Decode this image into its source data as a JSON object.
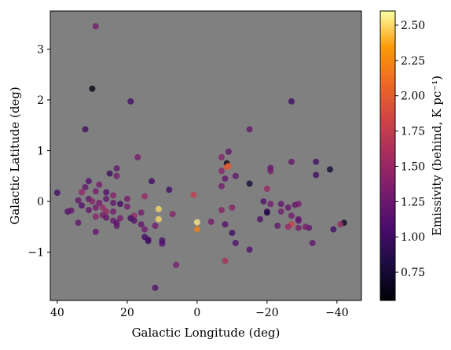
{
  "chart_data": {
    "type": "scatter",
    "xlabel": "Galactic Longitude (deg)",
    "ylabel": "Galactic Latitude (deg)",
    "x_reversed": true,
    "xlim": [
      42,
      -47
    ],
    "ylim": [
      -1.95,
      3.75
    ],
    "x_ticks": [
      40,
      20,
      0,
      -20,
      -40
    ],
    "x_tick_labels": [
      "40",
      "20",
      "0",
      "−20",
      "−40"
    ],
    "y_ticks": [
      3,
      2,
      1,
      0,
      -1
    ],
    "y_tick_labels": [
      "3",
      "2",
      "1",
      "0",
      "−1"
    ],
    "background_color": "#808080",
    "grid": false,
    "colorbar": {
      "label": "Emissivity (behind, K pc⁻¹)",
      "range": [
        0.55,
        2.6
      ],
      "ticks": [
        0.75,
        1.0,
        1.25,
        1.5,
        1.75,
        2.0,
        2.25,
        2.5
      ],
      "tick_labels": [
        "0.75",
        "1.00",
        "1.25",
        "1.50",
        "1.75",
        "2.00",
        "2.25",
        "2.50"
      ],
      "colormap": "inferno"
    },
    "points": [
      {
        "x": 29,
        "y": 3.45,
        "c": 1.3
      },
      {
        "x": 30,
        "y": 2.22,
        "c": 0.6
      },
      {
        "x": 19,
        "y": 1.97,
        "c": 1.0
      },
      {
        "x": -27,
        "y": 1.97,
        "c": 1.0
      },
      {
        "x": 32,
        "y": 1.42,
        "c": 1.0
      },
      {
        "x": -15,
        "y": 1.42,
        "c": 1.2
      },
      {
        "x": -9,
        "y": 0.98,
        "c": 1.2
      },
      {
        "x": 17,
        "y": 0.87,
        "c": 1.3
      },
      {
        "x": -7,
        "y": 0.87,
        "c": 1.4
      },
      {
        "x": -8.5,
        "y": 0.75,
        "c": 0.6
      },
      {
        "x": -8.5,
        "y": 0.68,
        "c": 1.95
      },
      {
        "x": -9,
        "y": 0.7,
        "c": 2.0
      },
      {
        "x": -27,
        "y": 0.78,
        "c": 1.2
      },
      {
        "x": -34,
        "y": 0.78,
        "c": 1.0
      },
      {
        "x": -38,
        "y": 0.63,
        "c": 0.75
      },
      {
        "x": -21,
        "y": 0.66,
        "c": 1.2
      },
      {
        "x": -21,
        "y": 0.6,
        "c": 1.3
      },
      {
        "x": -7,
        "y": 0.6,
        "c": 1.4
      },
      {
        "x": 23,
        "y": 0.65,
        "c": 1.2
      },
      {
        "x": 25,
        "y": 0.55,
        "c": 1.0
      },
      {
        "x": -11,
        "y": 0.5,
        "c": 1.2
      },
      {
        "x": -34,
        "y": 0.52,
        "c": 1.0
      },
      {
        "x": 23,
        "y": 0.5,
        "c": 1.3
      },
      {
        "x": -8,
        "y": 0.45,
        "c": 1.2
      },
      {
        "x": 31,
        "y": 0.4,
        "c": 1.1
      },
      {
        "x": 13,
        "y": 0.4,
        "c": 1.0
      },
      {
        "x": 28,
        "y": 0.33,
        "c": 1.3
      },
      {
        "x": -15,
        "y": 0.35,
        "c": 0.75
      },
      {
        "x": 32,
        "y": 0.28,
        "c": 1.2
      },
      {
        "x": -7,
        "y": 0.3,
        "c": 1.3
      },
      {
        "x": 8,
        "y": 0.23,
        "c": 1.0
      },
      {
        "x": -20,
        "y": 0.25,
        "c": 1.5
      },
      {
        "x": 29,
        "y": 0.2,
        "c": 1.3
      },
      {
        "x": 26,
        "y": 0.18,
        "c": 1.1
      },
      {
        "x": 33,
        "y": 0.18,
        "c": 1.45
      },
      {
        "x": 40,
        "y": 0.17,
        "c": 1.0
      },
      {
        "x": 1,
        "y": 0.13,
        "c": 1.75
      },
      {
        "x": 24,
        "y": 0.12,
        "c": 1.4
      },
      {
        "x": 15,
        "y": 0.1,
        "c": 1.5
      },
      {
        "x": 31,
        "y": 0.05,
        "c": 1.2
      },
      {
        "x": 26,
        "y": 0.05,
        "c": 1.2
      },
      {
        "x": 20,
        "y": 0.05,
        "c": 1.3
      },
      {
        "x": 34,
        "y": 0.02,
        "c": 1.2
      },
      {
        "x": 30,
        "y": 0.0,
        "c": 1.4
      },
      {
        "x": -19,
        "y": 0.0,
        "c": 1.1
      },
      {
        "x": 28,
        "y": -0.03,
        "c": 1.3
      },
      {
        "x": 24,
        "y": -0.03,
        "c": 1.2
      },
      {
        "x": 22,
        "y": -0.05,
        "c": 1.0
      },
      {
        "x": -21,
        "y": -0.05,
        "c": 1.3
      },
      {
        "x": -24,
        "y": -0.05,
        "c": 1.2
      },
      {
        "x": -28,
        "y": -0.07,
        "c": 1.2
      },
      {
        "x": -29,
        "y": -0.05,
        "c": 1.3
      },
      {
        "x": 33,
        "y": -0.08,
        "c": 1.1
      },
      {
        "x": 20,
        "y": -0.1,
        "c": 1.3
      },
      {
        "x": 27,
        "y": -0.12,
        "c": 1.5
      },
      {
        "x": 29,
        "y": -0.12,
        "c": 1.3
      },
      {
        "x": -10,
        "y": -0.12,
        "c": 1.4
      },
      {
        "x": -26,
        "y": -0.12,
        "c": 1.2
      },
      {
        "x": 11,
        "y": -0.15,
        "c": 2.5
      },
      {
        "x": -7,
        "y": -0.17,
        "c": 1.4
      },
      {
        "x": 37,
        "y": -0.2,
        "c": 1.1
      },
      {
        "x": 36,
        "y": -0.18,
        "c": 1.2
      },
      {
        "x": 31,
        "y": -0.17,
        "c": 1.2
      },
      {
        "x": 26,
        "y": -0.2,
        "c": 1.5
      },
      {
        "x": 24,
        "y": -0.2,
        "c": 1.3
      },
      {
        "x": 16,
        "y": -0.22,
        "c": 1.3
      },
      {
        "x": -20,
        "y": -0.2,
        "c": 1.1
      },
      {
        "x": -20,
        "y": -0.22,
        "c": 0.8
      },
      {
        "x": -24,
        "y": -0.2,
        "c": 1.3
      },
      {
        "x": 7,
        "y": -0.25,
        "c": 1.4
      },
      {
        "x": 27,
        "y": -0.27,
        "c": 1.3
      },
      {
        "x": 18,
        "y": -0.28,
        "c": 1.5
      },
      {
        "x": -27,
        "y": -0.28,
        "c": 1.3
      },
      {
        "x": 29,
        "y": -0.3,
        "c": 1.4
      },
      {
        "x": 26,
        "y": -0.32,
        "c": 1.2
      },
      {
        "x": 22,
        "y": -0.33,
        "c": 1.3
      },
      {
        "x": 19,
        "y": -0.33,
        "c": 1.0
      },
      {
        "x": -18,
        "y": -0.35,
        "c": 1.1
      },
      {
        "x": -29,
        "y": -0.35,
        "c": 1.2
      },
      {
        "x": 11,
        "y": -0.35,
        "c": 2.5
      },
      {
        "x": 24,
        "y": -0.38,
        "c": 1.2
      },
      {
        "x": 18,
        "y": -0.38,
        "c": 1.1
      },
      {
        "x": -29,
        "y": -0.38,
        "c": 1.2
      },
      {
        "x": -4,
        "y": -0.4,
        "c": 1.3
      },
      {
        "x": 0,
        "y": -0.41,
        "c": 2.55
      },
      {
        "x": 34,
        "y": -0.42,
        "c": 1.2
      },
      {
        "x": 23,
        "y": -0.42,
        "c": 1.2
      },
      {
        "x": 16,
        "y": -0.45,
        "c": 1.2
      },
      {
        "x": -42,
        "y": -0.42,
        "c": 0.65
      },
      {
        "x": -41,
        "y": -0.45,
        "c": 1.5
      },
      {
        "x": -8,
        "y": -0.45,
        "c": 1.1
      },
      {
        "x": -27,
        "y": -0.45,
        "c": 1.8
      },
      {
        "x": 12,
        "y": -0.48,
        "c": 1.3
      },
      {
        "x": 23,
        "y": -0.48,
        "c": 1.2
      },
      {
        "x": -23,
        "y": -0.48,
        "c": 1.2
      },
      {
        "x": -26,
        "y": -0.5,
        "c": 1.5
      },
      {
        "x": -29,
        "y": -0.52,
        "c": 1.3
      },
      {
        "x": 15,
        "y": -0.55,
        "c": 1.3
      },
      {
        "x": 0,
        "y": -0.55,
        "c": 2.2
      },
      {
        "x": -32,
        "y": -0.52,
        "c": 1.2
      },
      {
        "x": -31,
        "y": -0.5,
        "c": 1.3
      },
      {
        "x": -39,
        "y": -0.55,
        "c": 1.0
      },
      {
        "x": 29,
        "y": -0.6,
        "c": 1.2
      },
      {
        "x": -10,
        "y": -0.62,
        "c": 1.0
      },
      {
        "x": 15,
        "y": -0.7,
        "c": 1.0
      },
      {
        "x": 14,
        "y": -0.75,
        "c": 1.1
      },
      {
        "x": 10,
        "y": -0.77,
        "c": 1.0
      },
      {
        "x": 14,
        "y": -0.78,
        "c": 1.0
      },
      {
        "x": -11,
        "y": -0.82,
        "c": 1.1
      },
      {
        "x": 10,
        "y": -0.83,
        "c": 1.1
      },
      {
        "x": -33,
        "y": -0.82,
        "c": 1.2
      },
      {
        "x": -15,
        "y": -0.95,
        "c": 1.1
      },
      {
        "x": -8,
        "y": -1.17,
        "c": 1.6
      },
      {
        "x": 6,
        "y": -1.25,
        "c": 1.3
      },
      {
        "x": 12,
        "y": -1.7,
        "c": 1.1
      }
    ]
  }
}
